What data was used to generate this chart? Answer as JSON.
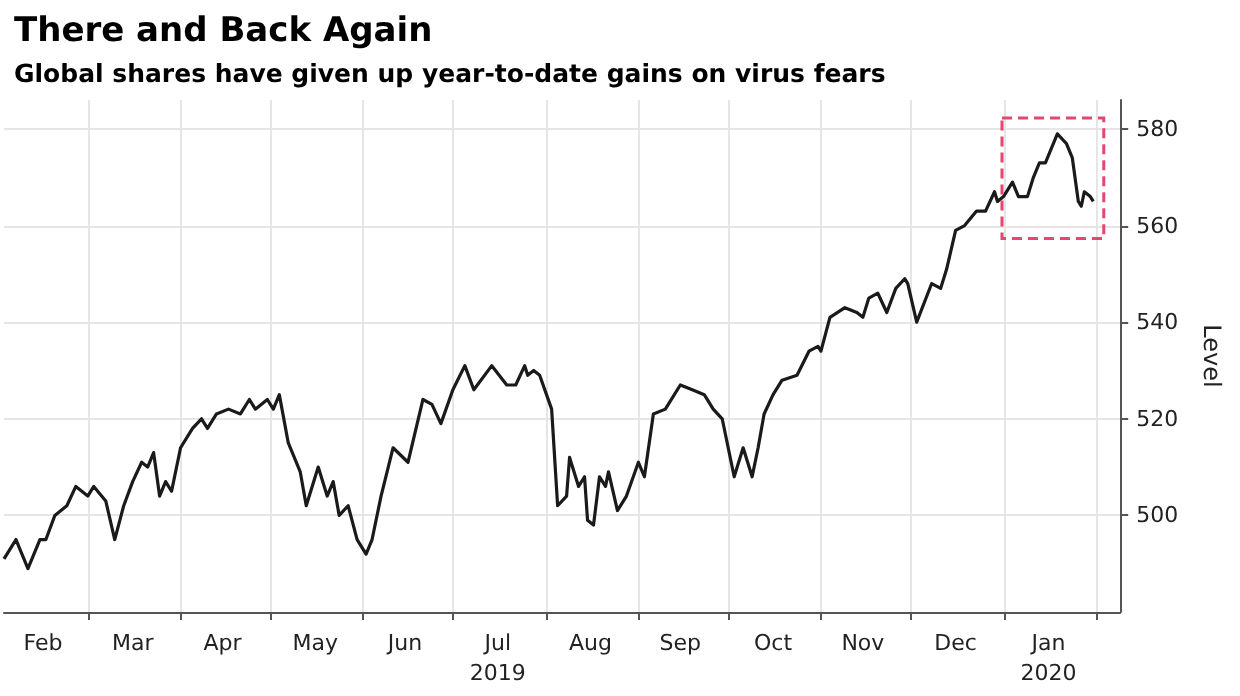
{
  "chart_data": {
    "type": "line",
    "title": "There and Back Again",
    "subtitle": "Global shares have given up year-to-date gains on virus fears",
    "ylabel": "Level",
    "x": [
      "2019-02-01",
      "2019-02-05",
      "2019-02-09",
      "2019-02-13",
      "2019-02-15",
      "2019-02-18",
      "2019-02-22",
      "2019-02-25",
      "2019-03-01",
      "2019-03-03",
      "2019-03-07",
      "2019-03-10",
      "2019-03-13",
      "2019-03-16",
      "2019-03-19",
      "2019-03-21",
      "2019-03-23",
      "2019-03-25",
      "2019-03-27",
      "2019-03-29",
      "2019-04-01",
      "2019-04-05",
      "2019-04-08",
      "2019-04-10",
      "2019-04-13",
      "2019-04-17",
      "2019-04-21",
      "2019-04-24",
      "2019-04-26",
      "2019-04-30",
      "2019-05-02",
      "2019-05-04",
      "2019-05-07",
      "2019-05-11",
      "2019-05-13",
      "2019-05-17",
      "2019-05-20",
      "2019-05-22",
      "2019-05-24",
      "2019-05-27",
      "2019-05-30",
      "2019-06-02",
      "2019-06-04",
      "2019-06-07",
      "2019-06-11",
      "2019-06-16",
      "2019-06-21",
      "2019-06-24",
      "2019-06-27",
      "2019-07-01",
      "2019-07-05",
      "2019-07-08",
      "2019-07-14",
      "2019-07-19",
      "2019-07-22",
      "2019-07-25",
      "2019-07-26",
      "2019-07-28",
      "2019-07-30",
      "2019-08-03",
      "2019-08-05",
      "2019-08-08",
      "2019-08-09",
      "2019-08-12",
      "2019-08-14",
      "2019-08-15",
      "2019-08-17",
      "2019-08-19",
      "2019-08-21",
      "2019-08-22",
      "2019-08-25",
      "2019-08-28",
      "2019-09-01",
      "2019-09-03",
      "2019-09-06",
      "2019-09-10",
      "2019-09-15",
      "2019-09-19",
      "2019-09-23",
      "2019-09-26",
      "2019-09-29",
      "2019-10-03",
      "2019-10-06",
      "2019-10-09",
      "2019-10-11",
      "2019-10-13",
      "2019-10-16",
      "2019-10-19",
      "2019-10-24",
      "2019-10-28",
      "2019-10-31",
      "2019-11-01",
      "2019-11-04",
      "2019-11-09",
      "2019-11-13",
      "2019-11-15",
      "2019-11-17",
      "2019-11-20",
      "2019-11-23",
      "2019-11-26",
      "2019-11-29",
      "2019-11-30",
      "2019-12-03",
      "2019-12-08",
      "2019-12-11",
      "2019-12-13",
      "2019-12-16",
      "2019-12-19",
      "2019-12-23",
      "2019-12-26",
      "2019-12-29",
      "2019-12-30",
      "2020-01-01",
      "2020-01-04",
      "2020-01-06",
      "2020-01-09",
      "2020-01-11",
      "2020-01-13",
      "2020-01-15",
      "2020-01-19",
      "2020-01-22",
      "2020-01-24",
      "2020-01-26",
      "2020-01-27",
      "2020-01-28",
      "2020-01-30",
      "2020-01-31"
    ],
    "series": [
      {
        "color": "#1a1a1a",
        "values": [
          491,
          495,
          489,
          495,
          495,
          500,
          502,
          506,
          504,
          506,
          503,
          495,
          502,
          507,
          511,
          510,
          513,
          504,
          507,
          505,
          514,
          518,
          520,
          518,
          521,
          522,
          521,
          524,
          522,
          524,
          522,
          525,
          515,
          509,
          502,
          510,
          504,
          507,
          500,
          502,
          495,
          492,
          495,
          504,
          514,
          511,
          524,
          523,
          519,
          526,
          531,
          526,
          531,
          527,
          527,
          531,
          529,
          530,
          529,
          522,
          502,
          504,
          512,
          506,
          508,
          499,
          498,
          508,
          506,
          509,
          501,
          504,
          511,
          508,
          521,
          522,
          527,
          526,
          525,
          522,
          520,
          508,
          514,
          508,
          514,
          521,
          525,
          528,
          529,
          534,
          535,
          534,
          541,
          543,
          542,
          541,
          545,
          546,
          542,
          547,
          549,
          548,
          540,
          548,
          547,
          551,
          559,
          560,
          563,
          563,
          567,
          565,
          566,
          569,
          566,
          566,
          570,
          573,
          573,
          579,
          577,
          574,
          565,
          564,
          567,
          566,
          565
        ]
      }
    ],
    "xlim": [
      "2019-02-01",
      "2020-02-09"
    ],
    "xticks": [
      {
        "value": "2019-03-01",
        "label": null
      },
      {
        "value": "2019-04-01",
        "label": null
      },
      {
        "value": "2019-05-01",
        "label": null
      },
      {
        "value": "2019-06-01",
        "label": null
      },
      {
        "value": "2019-07-01",
        "label": null
      },
      {
        "value": "2019-08-01",
        "label": null
      },
      {
        "value": "2019-09-01",
        "label": null
      },
      {
        "value": "2019-10-01",
        "label": null
      },
      {
        "value": "2019-11-01",
        "label": null
      },
      {
        "value": "2019-12-01",
        "label": null
      },
      {
        "value": "2020-01-01",
        "label": null
      },
      {
        "value": "2020-02-01",
        "label": null
      },
      {
        "value": "2019-02-14",
        "label": "Feb"
      },
      {
        "value": "2019-03-16",
        "label": "Mar"
      },
      {
        "value": "2019-04-15",
        "label": "Apr"
      },
      {
        "value": "2019-05-16",
        "label": "May"
      },
      {
        "value": "2019-06-15",
        "label": "Jun"
      },
      {
        "value": "2019-07-16",
        "label": "Jul\n2019"
      },
      {
        "value": "2019-08-16",
        "label": "Aug"
      },
      {
        "value": "2019-09-15",
        "label": "Sep"
      },
      {
        "value": "2019-10-16",
        "label": "Oct"
      },
      {
        "value": "2019-11-15",
        "label": "Nov"
      },
      {
        "value": "2019-12-16",
        "label": "Dec"
      },
      {
        "value": "2020-01-16",
        "label": "Jan\n2020"
      }
    ],
    "ylim": [
      480,
      586
    ],
    "yticks": [
      500,
      520,
      540,
      560,
      580
    ],
    "grid": true,
    "marker": "none",
    "line_style": "solid"
  }
}
